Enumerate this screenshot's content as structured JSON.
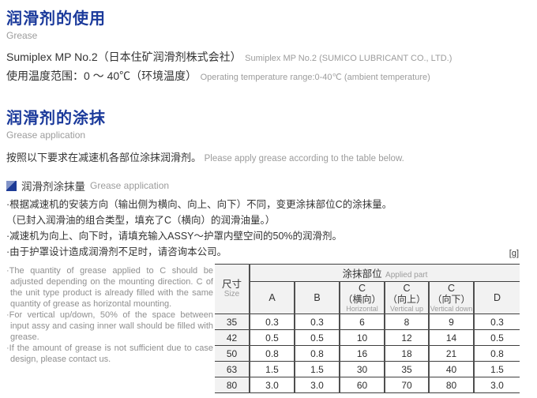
{
  "section1": {
    "title_zh": "润滑剂的使用",
    "title_en": "Grease",
    "product_zh": "Sumiplex MP No.2（日本住矿润滑剂株式会社）",
    "product_en": "Sumiplex MP No.2 (SUMICO LUBRICANT CO., LTD.)",
    "temp_zh": "使用温度范围：0 ～ 40℃（环境温度）",
    "temp_en": "Operating temperature range:0-40℃ (ambient temperature)"
  },
  "section2": {
    "title_zh": "润滑剂的涂抹",
    "title_en": "Grease application",
    "intro_zh": "按照以下要求在减速机各部位涂抹润滑剂。",
    "intro_en": "Please apply grease according to the table below.",
    "subsection_zh": "润滑剂涂抹量",
    "subsection_en": "Grease application",
    "notes_zh": [
      "·根据减速机的安装方向（输出侧为横向、向上、向下）不同，变更涂抹部位C的涂抹量。",
      "（已封入润滑油的组合类型，填充了C（横向）的润滑油量。）",
      "·减速机为向上、向下时，请填充输入ASSY～护罩内壁空间的50%的润滑剂。",
      "·由于护罩设计造成润滑剂不足时，请咨询本公司。"
    ],
    "notes_en": [
      "·The quantity of grease applied to C should be adjusted depending on the mounting direction. C of the unit type product is already filled with the same quantity of grease as horizontal mounting.",
      "·For vertical up/down, 50% of the space between input assy and casing inner wall should be filled with grease.",
      "·If the amount of grease is not sufficient due to case design, please contact us."
    ]
  },
  "table": {
    "unit": "[g]",
    "size_header_zh": "尺寸",
    "size_header_en": "Size",
    "group_header_zh": "涂抹部位",
    "group_header_en": "Applied part",
    "columns": [
      {
        "main": "A",
        "sub": "",
        "en": ""
      },
      {
        "main": "B",
        "sub": "",
        "en": ""
      },
      {
        "main": "C",
        "sub": "（横向）",
        "en": "Horizontal"
      },
      {
        "main": "C",
        "sub": "（向上）",
        "en": "Vertical up"
      },
      {
        "main": "C",
        "sub": "（向下）",
        "en": "Vertical down"
      },
      {
        "main": "D",
        "sub": "",
        "en": ""
      }
    ],
    "rows": [
      {
        "size": "35",
        "values": [
          "0.3",
          "0.3",
          "6",
          "8",
          "9",
          "0.3"
        ]
      },
      {
        "size": "42",
        "values": [
          "0.5",
          "0.5",
          "10",
          "12",
          "14",
          "0.5"
        ]
      },
      {
        "size": "50",
        "values": [
          "0.8",
          "0.8",
          "16",
          "18",
          "21",
          "0.8"
        ]
      },
      {
        "size": "63",
        "values": [
          "1.5",
          "1.5",
          "30",
          "35",
          "40",
          "1.5"
        ]
      },
      {
        "size": "80",
        "values": [
          "3.0",
          "3.0",
          "60",
          "70",
          "80",
          "3.0"
        ]
      }
    ]
  },
  "colors": {
    "heading_blue": "#1b3a9b",
    "text_dark": "#323232",
    "text_gray": "#9c9c9c",
    "table_header_bg": "#f2f2f2",
    "border_dark": "#4f4f4f"
  }
}
